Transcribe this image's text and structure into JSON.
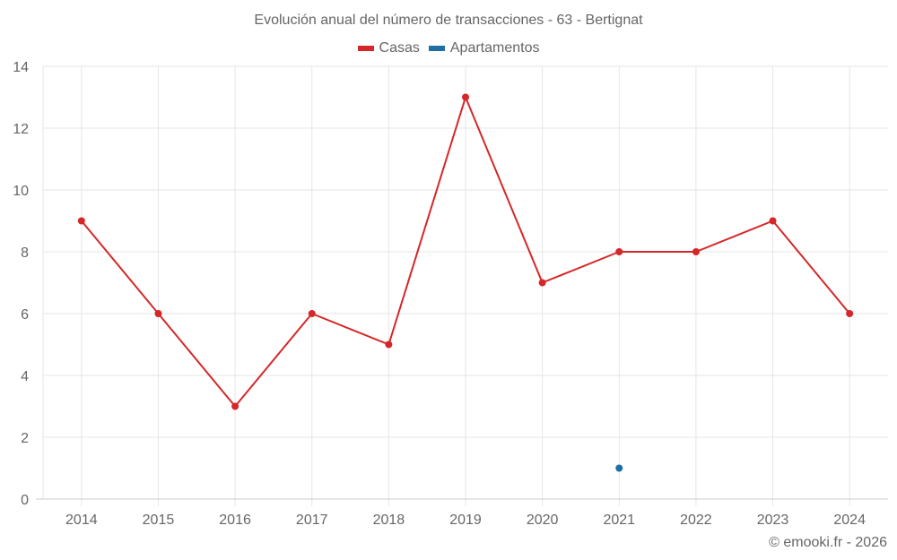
{
  "chart_data": {
    "type": "line",
    "title": "Evolución anual del número de transacciones - 63 - Bertignat",
    "xlabel": "",
    "ylabel": "",
    "categories": [
      "2014",
      "2015",
      "2016",
      "2017",
      "2018",
      "2019",
      "2020",
      "2021",
      "2022",
      "2023",
      "2024"
    ],
    "series": [
      {
        "name": "Casas",
        "color": "#d62728",
        "values": [
          9,
          6,
          3,
          6,
          5,
          13,
          7,
          8,
          8,
          9,
          6
        ]
      },
      {
        "name": "Apartamentos",
        "color": "#1f6fa3",
        "values": [
          null,
          null,
          null,
          null,
          null,
          null,
          null,
          1,
          null,
          null,
          null
        ]
      }
    ],
    "ylim": [
      0,
      14
    ],
    "yticks": [
      0,
      2,
      4,
      6,
      8,
      10,
      12,
      14
    ],
    "grid": true,
    "legend_position": "top-center"
  },
  "credit": "© emooki.fr - 2026",
  "colors": {
    "text": "#666666",
    "grid": "#e6e6e6",
    "axis": "#cccccc"
  }
}
